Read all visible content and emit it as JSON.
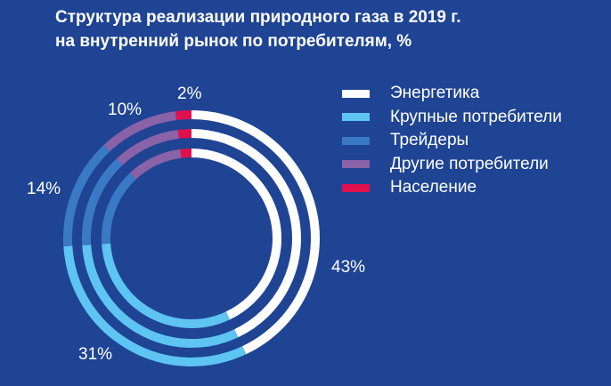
{
  "title_lines": [
    "Структура реализации природного газа в 2019 г.",
    "на внутренний рынок по потребителям, %"
  ],
  "chart_data": {
    "type": "pie",
    "variant": "concentric-rings",
    "title": "Структура реализации природного газа в 2019 г. на внутренний рынок по потребителям, %",
    "ring_count": 3,
    "legend_position": "right",
    "categories": [
      "Энергетика",
      "Крупные потребители",
      "Трейдеры",
      "Другие потребители",
      "Население"
    ],
    "values": [
      43,
      31,
      14,
      10,
      2
    ],
    "value_labels": [
      "43%",
      "31%",
      "14%",
      "10%",
      "2%"
    ],
    "colors": [
      "#ffffff",
      "#5ec4f2",
      "#3a79c5",
      "#8a62a8",
      "#e0104f"
    ]
  }
}
